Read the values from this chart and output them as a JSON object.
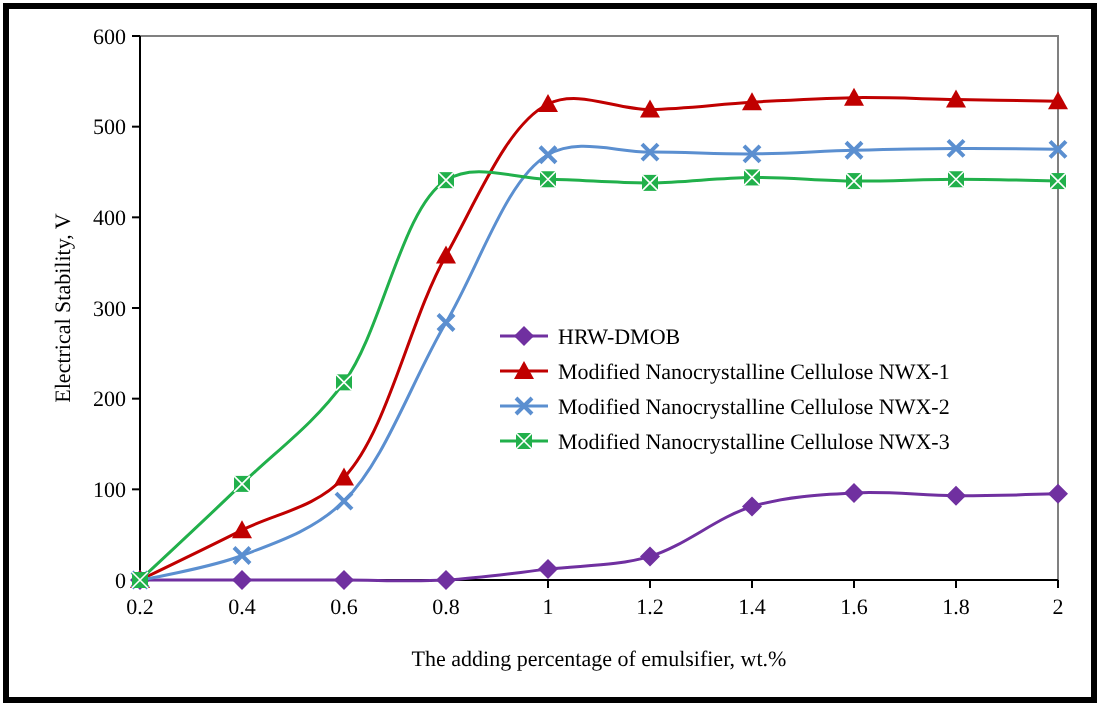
{
  "chart_data": {
    "type": "line",
    "xlabel": "The adding percentage of emulsifier,  wt.%",
    "ylabel": "Electrical Stability, V",
    "x": [
      0.2,
      0.4,
      0.6,
      0.8,
      1,
      1.2,
      1.4,
      1.6,
      1.8,
      2
    ],
    "xlim": [
      0.2,
      2
    ],
    "xticks": [
      0.2,
      0.4,
      0.6,
      0.8,
      1,
      1.2,
      1.4,
      1.6,
      1.8,
      2
    ],
    "ylim": [
      0,
      600
    ],
    "yticks": [
      0,
      100,
      200,
      300,
      400,
      500,
      600
    ],
    "grid": false,
    "legend": "center right",
    "series": [
      {
        "name": "HRW-DMOB",
        "color": "#7030a0",
        "marker": "diamond",
        "values": [
          0,
          0,
          0,
          0,
          12,
          26,
          81,
          96,
          93,
          95
        ]
      },
      {
        "name": "Modified Nanocrystalline Cellulose NWX-1",
        "color": "#c00000",
        "marker": "triangle",
        "values": [
          0,
          55,
          113,
          358,
          525,
          519,
          527,
          532,
          530,
          528
        ]
      },
      {
        "name": "Modified Nanocrystalline Cellulose NWX-2",
        "color": "#5b8fd0",
        "marker": "cross",
        "values": [
          0,
          27,
          87,
          284,
          469,
          472,
          470,
          474,
          476,
          475
        ]
      },
      {
        "name": "Modified Nanocrystalline Cellulose NWX-3",
        "color": "#21b04b",
        "marker": "square",
        "values": [
          0,
          106,
          218,
          441,
          442,
          438,
          444,
          440,
          442,
          440
        ]
      }
    ]
  }
}
